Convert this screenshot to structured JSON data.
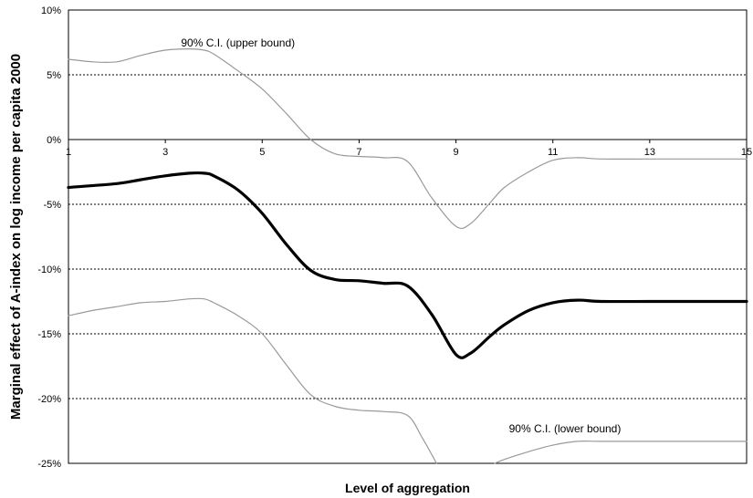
{
  "chart_data": {
    "type": "line",
    "xlabel": "Level of aggregation",
    "ylabel": "Marginal effect of A-index on log income per capita 2000",
    "xlim": [
      1,
      15
    ],
    "ylim": [
      -25,
      10
    ],
    "x_ticks": [
      1,
      3,
      5,
      7,
      9,
      11,
      13,
      15
    ],
    "y_ticks": [
      {
        "value": 10,
        "label": "10%"
      },
      {
        "value": 5,
        "label": "5%"
      },
      {
        "value": 0,
        "label": "0%"
      },
      {
        "value": -5,
        "label": "-5%"
      },
      {
        "value": -10,
        "label": "-10%"
      },
      {
        "value": -15,
        "label": "-15%"
      },
      {
        "value": -20,
        "label": "-20%"
      },
      {
        "value": -25,
        "label": "-25%"
      }
    ],
    "grid": "horizontal dashed",
    "series": [
      {
        "role": "estimate",
        "color": "#000000",
        "points": [
          [
            1,
            -3.7
          ],
          [
            2,
            -3.4
          ],
          [
            2.5,
            -3.1
          ],
          [
            3,
            -2.8
          ],
          [
            3.5,
            -2.6
          ],
          [
            3.8,
            -2.6
          ],
          [
            4,
            -2.8
          ],
          [
            4.5,
            -3.9
          ],
          [
            5,
            -5.7
          ],
          [
            5.5,
            -8.1
          ],
          [
            6,
            -10.1
          ],
          [
            6.5,
            -10.8
          ],
          [
            7,
            -10.9
          ],
          [
            7.5,
            -11.1
          ],
          [
            8,
            -11.3
          ],
          [
            8.5,
            -13.5
          ],
          [
            9,
            -16.6
          ],
          [
            9.3,
            -16.5
          ],
          [
            9.7,
            -15.2
          ],
          [
            10,
            -14.3
          ],
          [
            10.5,
            -13.2
          ],
          [
            11,
            -12.6
          ],
          [
            11.5,
            -12.4
          ],
          [
            12,
            -12.5
          ],
          [
            13,
            -12.5
          ],
          [
            14,
            -12.5
          ],
          [
            15,
            -12.5
          ]
        ]
      },
      {
        "role": "upper",
        "color": "#999999",
        "points": [
          [
            1,
            6.2
          ],
          [
            1.5,
            6.0
          ],
          [
            2,
            6.0
          ],
          [
            2.5,
            6.5
          ],
          [
            3,
            6.9
          ],
          [
            3.5,
            7.0
          ],
          [
            3.8,
            6.9
          ],
          [
            4,
            6.6
          ],
          [
            4.5,
            5.3
          ],
          [
            5,
            3.9
          ],
          [
            5.5,
            2.0
          ],
          [
            6,
            0
          ],
          [
            6.5,
            -1.1
          ],
          [
            7,
            -1.3
          ],
          [
            7.5,
            -1.4
          ],
          [
            8,
            -1.7
          ],
          [
            8.5,
            -4.5
          ],
          [
            9,
            -6.7
          ],
          [
            9.3,
            -6.5
          ],
          [
            9.7,
            -4.9
          ],
          [
            10,
            -3.7
          ],
          [
            10.5,
            -2.5
          ],
          [
            11,
            -1.6
          ],
          [
            11.5,
            -1.4
          ],
          [
            12,
            -1.5
          ],
          [
            13,
            -1.5
          ],
          [
            14,
            -1.5
          ],
          [
            15,
            -1.5
          ]
        ]
      },
      {
        "role": "lower",
        "color": "#999999",
        "points": [
          [
            1,
            -13.6
          ],
          [
            1.5,
            -13.2
          ],
          [
            2,
            -12.9
          ],
          [
            2.5,
            -12.6
          ],
          [
            3,
            -12.5
          ],
          [
            3.5,
            -12.3
          ],
          [
            3.8,
            -12.3
          ],
          [
            4,
            -12.6
          ],
          [
            4.5,
            -13.6
          ],
          [
            5,
            -15.0
          ],
          [
            5.5,
            -17.4
          ],
          [
            6,
            -19.7
          ],
          [
            6.5,
            -20.6
          ],
          [
            7,
            -20.9
          ],
          [
            7.5,
            -21.0
          ],
          [
            8,
            -21.3
          ],
          [
            8.3,
            -23.0
          ],
          [
            8.6,
            -25.0
          ]
        ]
      },
      {
        "role": "lower",
        "color": "#999999",
        "points": [
          [
            9.8,
            -25.0
          ],
          [
            10,
            -24.7
          ],
          [
            10.5,
            -24.1
          ],
          [
            11,
            -23.6
          ],
          [
            11.5,
            -23.3
          ],
          [
            12,
            -23.3
          ],
          [
            13,
            -23.3
          ],
          [
            14,
            -23.3
          ],
          [
            15,
            -23.3
          ]
        ]
      }
    ],
    "annotations": [
      {
        "text": "90% C.I. (upper bound)",
        "x": 4.5,
        "y": 7.2
      },
      {
        "text": "90% C.I. (lower bound)",
        "x": 11.25,
        "y": -22.6
      }
    ]
  }
}
